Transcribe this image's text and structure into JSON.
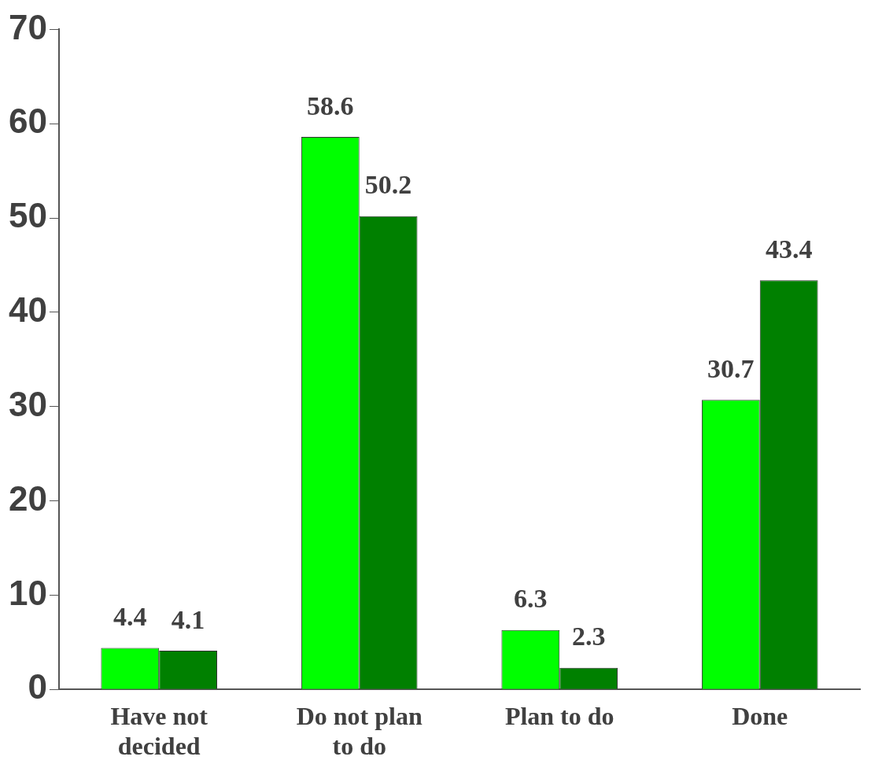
{
  "chart_data": {
    "type": "bar",
    "categories": [
      "Have not decided",
      "Do not plan to do",
      "Plan to do",
      "Done"
    ],
    "series": [
      {
        "color": "#00ff00",
        "values": [
          4.4,
          58.6,
          6.3,
          30.7
        ]
      },
      {
        "color": "#008000",
        "values": [
          4.1,
          50.2,
          2.3,
          43.4
        ]
      }
    ],
    "ylim": [
      0,
      70
    ],
    "yticks": [
      0,
      10,
      20,
      30,
      40,
      50,
      60,
      70
    ],
    "grid": false,
    "legend": false,
    "data_labels": true
  }
}
